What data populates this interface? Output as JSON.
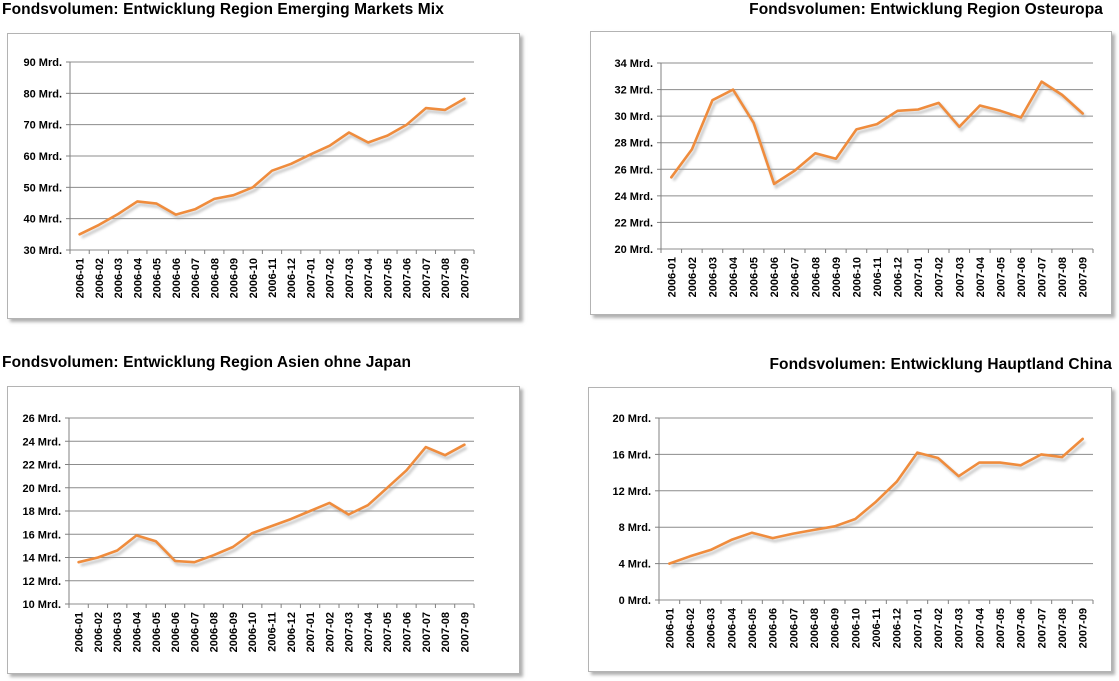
{
  "page": {
    "background": "#ffffff"
  },
  "style": {
    "line_color": "#EF8C3D",
    "line_shadow_color": "#9e9e9e",
    "grid_color": "#8c8c8c",
    "axis_color": "#808080",
    "box_border_color": "#b3b3b3",
    "text_color": "#000000"
  },
  "x_categories": [
    "2006-01",
    "2006-02",
    "2006-03",
    "2006-04",
    "2006-05",
    "2006-06",
    "2006-07",
    "2006-08",
    "2006-09",
    "2006-10",
    "2006-11",
    "2006-12",
    "2007-01",
    "2007-02",
    "2007-03",
    "2007-04",
    "2007-05",
    "2007-06",
    "2007-07",
    "2007-08",
    "2007-09"
  ],
  "unit_suffix": " Mrd.",
  "chart_data": [
    {
      "type": "line",
      "title": "Fondsvolumen: Entwicklung Region Emerging Markets Mix",
      "title_align": "left",
      "ylabel_unit": "Mrd.",
      "ylim": [
        30,
        90
      ],
      "y_ticks": [
        90,
        80,
        70,
        60,
        50,
        40,
        30
      ],
      "grid": true,
      "legend": null,
      "values": [
        35,
        38,
        41.5,
        45.5,
        44.8,
        41.3,
        43,
        46.3,
        47.5,
        50,
        55.3,
        57.5,
        60.5,
        63.3,
        67.5,
        64.3,
        66.5,
        70,
        75.3,
        74.7,
        78.3
      ]
    },
    {
      "type": "line",
      "title": "Fondsvolumen: Entwicklung Region Osteuropa",
      "title_align": "right",
      "ylabel_unit": "Mrd.",
      "ylim": [
        20,
        34
      ],
      "y_ticks": [
        34,
        32,
        30,
        28,
        26,
        24,
        22,
        20
      ],
      "grid": true,
      "legend": null,
      "values": [
        25.4,
        27.5,
        31.2,
        32.0,
        29.5,
        24.9,
        25.9,
        27.2,
        26.8,
        29.0,
        29.4,
        30.4,
        30.5,
        31.0,
        29.2,
        30.8,
        30.4,
        29.9,
        32.6,
        31.6,
        30.2
      ]
    },
    {
      "type": "line",
      "title": "Fondsvolumen: Entwicklung Region Asien ohne Japan",
      "title_align": "left",
      "ylabel_unit": "Mrd.",
      "ylim": [
        10,
        26
      ],
      "y_ticks": [
        26,
        24,
        22,
        20,
        18,
        16,
        14,
        12,
        10
      ],
      "grid": true,
      "legend": null,
      "values": [
        13.6,
        14.0,
        14.6,
        15.9,
        15.4,
        13.7,
        13.6,
        14.2,
        14.9,
        16.1,
        16.7,
        17.3,
        18.0,
        18.7,
        17.7,
        18.5,
        20.0,
        21.5,
        23.5,
        22.8,
        23.7
      ]
    },
    {
      "type": "line",
      "title": "Fondsvolumen: Entwicklung Hauptland China",
      "title_align": "right",
      "ylabel_unit": "Mrd.",
      "ylim": [
        0,
        20
      ],
      "y_ticks": [
        20,
        16,
        12,
        8,
        4,
        0
      ],
      "grid": true,
      "legend": null,
      "values": [
        4.0,
        4.8,
        5.5,
        6.6,
        7.4,
        6.8,
        7.3,
        7.7,
        8.1,
        8.9,
        10.8,
        13.0,
        16.2,
        15.6,
        13.6,
        15.1,
        15.1,
        14.8,
        16.0,
        15.7,
        17.7
      ]
    }
  ]
}
